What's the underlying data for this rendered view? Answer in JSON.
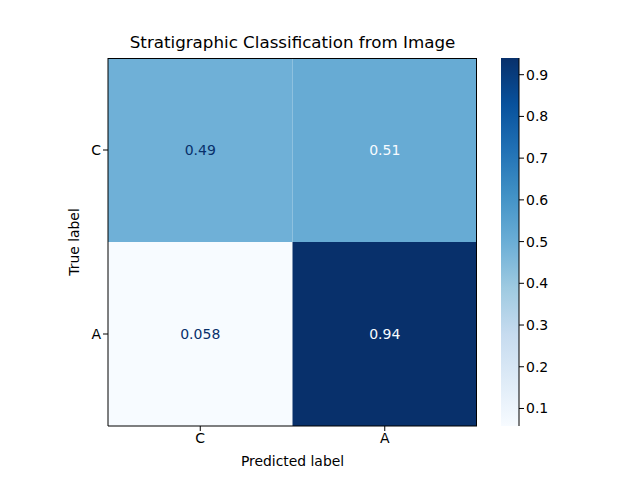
{
  "chart_data": {
    "type": "heatmap",
    "title": "Stratigraphic Classification from Image",
    "xlabel": "Predicted label",
    "ylabel": "True label",
    "x_categories": [
      "C",
      "A"
    ],
    "y_categories": [
      "C",
      "A"
    ],
    "cells": [
      [
        0.49,
        0.51
      ],
      [
        0.058,
        0.94
      ]
    ],
    "data_labels": true,
    "colorbar": {
      "range": [
        0.058,
        0.94
      ],
      "ticks": [
        0.1,
        0.2,
        0.3,
        0.4,
        0.5,
        0.6,
        0.7,
        0.8,
        0.9
      ]
    }
  }
}
